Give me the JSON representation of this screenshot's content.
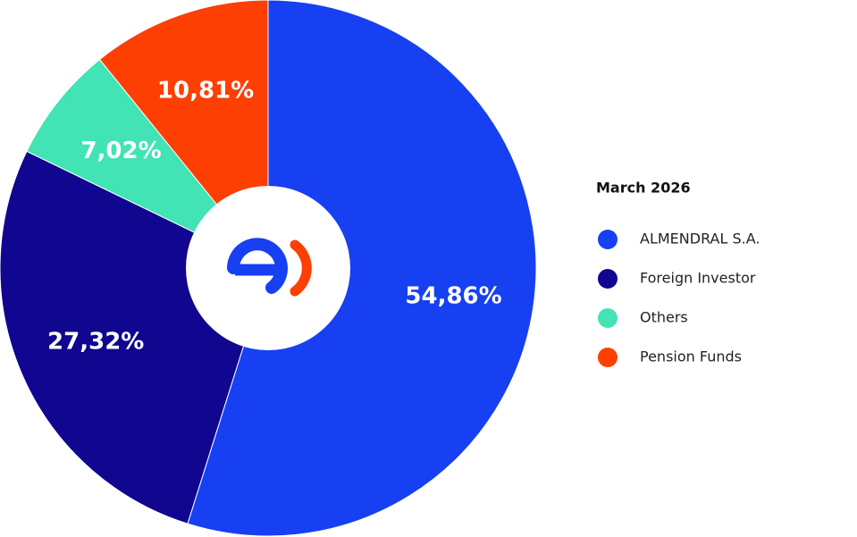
{
  "chart_data": {
    "type": "pie",
    "legend_title": "March 2026",
    "categories": [
      "ALMENDRAL S.A.",
      "Foreign Investor",
      "Others",
      "Pension Funds"
    ],
    "values": [
      54.86,
      27.32,
      7.02,
      10.81
    ],
    "value_labels": [
      "54,86%",
      "27,32%",
      "7,02%",
      "10,81%"
    ],
    "colors": [
      "#1740f2",
      "#10068f",
      "#42e3b4",
      "#fd3f03"
    ]
  }
}
